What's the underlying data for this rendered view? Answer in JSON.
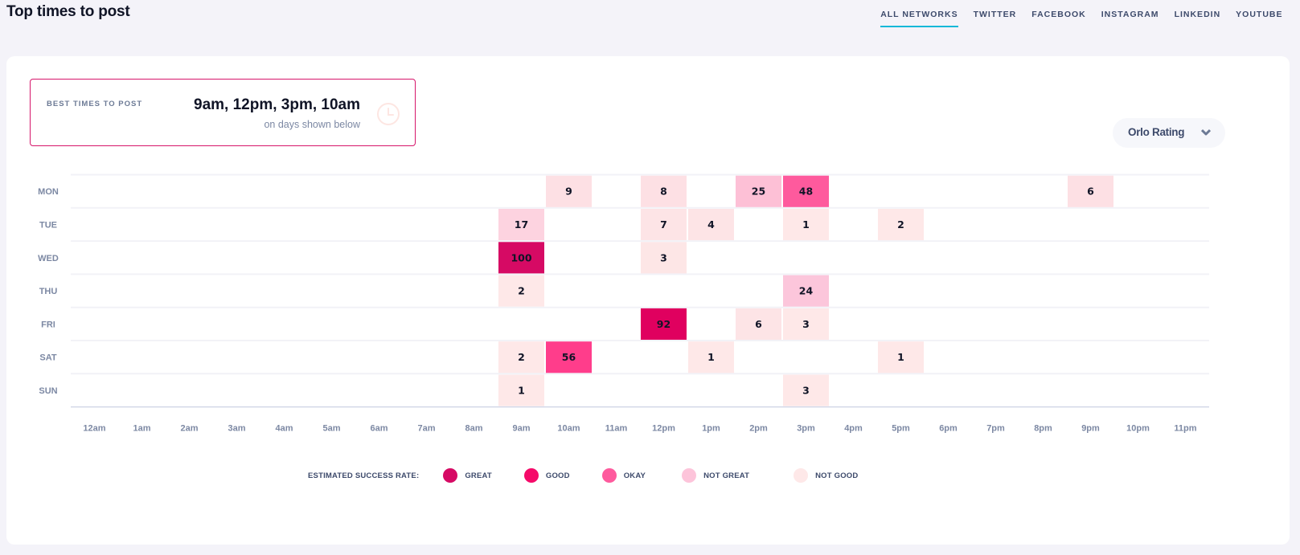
{
  "header": {
    "title": "Top times to post",
    "tabs": [
      {
        "label": "ALL NETWORKS",
        "active": true
      },
      {
        "label": "TWITTER",
        "active": false
      },
      {
        "label": "FACEBOOK",
        "active": false
      },
      {
        "label": "INSTAGRAM",
        "active": false
      },
      {
        "label": "LINKEDIN",
        "active": false
      },
      {
        "label": "YOUTUBE",
        "active": false
      }
    ]
  },
  "best_times": {
    "label": "BEST TIMES TO POST",
    "times": "9am, 12pm, 3pm, 10am",
    "subtitle": "on days shown below",
    "icon": "clock-icon"
  },
  "rating_dropdown": {
    "label": "Orlo Rating",
    "icon": "chevron-down-icon"
  },
  "legend": {
    "title": "ESTIMATED SUCCESS RATE:",
    "items": [
      {
        "label": "GREAT",
        "color": "#d60a64"
      },
      {
        "label": "GOOD",
        "color": "#f50a69"
      },
      {
        "label": "OKAY",
        "color": "#fe5a9d"
      },
      {
        "label": "NOT GREAT",
        "color": "#fdc4da"
      },
      {
        "label": "NOT GOOD",
        "color": "#fee8e8"
      }
    ]
  },
  "chart_data": {
    "type": "heatmap",
    "title": "Top times to post",
    "y_categories": [
      "MON",
      "TUE",
      "WED",
      "THU",
      "FRI",
      "SAT",
      "SUN"
    ],
    "x_categories": [
      "12am",
      "1am",
      "2am",
      "3am",
      "4am",
      "5am",
      "6am",
      "7am",
      "8am",
      "9am",
      "10am",
      "11am",
      "12pm",
      "1pm",
      "2pm",
      "3pm",
      "4pm",
      "5pm",
      "6pm",
      "7pm",
      "8pm",
      "9pm",
      "10pm",
      "11pm"
    ],
    "cells": [
      {
        "day": "MON",
        "hour": "10am",
        "value": 9,
        "rating": "NOT GOOD"
      },
      {
        "day": "MON",
        "hour": "12pm",
        "value": 8,
        "rating": "NOT GOOD"
      },
      {
        "day": "MON",
        "hour": "2pm",
        "value": 25,
        "rating": "NOT GREAT"
      },
      {
        "day": "MON",
        "hour": "3pm",
        "value": 48,
        "rating": "OKAY"
      },
      {
        "day": "MON",
        "hour": "9pm",
        "value": 6,
        "rating": "NOT GOOD"
      },
      {
        "day": "TUE",
        "hour": "9am",
        "value": 17,
        "rating": "NOT GREAT"
      },
      {
        "day": "TUE",
        "hour": "12pm",
        "value": 7,
        "rating": "NOT GOOD"
      },
      {
        "day": "TUE",
        "hour": "1pm",
        "value": 4,
        "rating": "NOT GOOD"
      },
      {
        "day": "TUE",
        "hour": "3pm",
        "value": 1,
        "rating": "NOT GOOD"
      },
      {
        "day": "TUE",
        "hour": "5pm",
        "value": 2,
        "rating": "NOT GOOD"
      },
      {
        "day": "WED",
        "hour": "9am",
        "value": 100,
        "rating": "GREAT"
      },
      {
        "day": "WED",
        "hour": "12pm",
        "value": 3,
        "rating": "NOT GOOD"
      },
      {
        "day": "THU",
        "hour": "9am",
        "value": 2,
        "rating": "NOT GOOD"
      },
      {
        "day": "THU",
        "hour": "3pm",
        "value": 24,
        "rating": "NOT GREAT"
      },
      {
        "day": "FRI",
        "hour": "12pm",
        "value": 92,
        "rating": "GREAT"
      },
      {
        "day": "FRI",
        "hour": "2pm",
        "value": 6,
        "rating": "NOT GOOD"
      },
      {
        "day": "FRI",
        "hour": "3pm",
        "value": 3,
        "rating": "NOT GOOD"
      },
      {
        "day": "SAT",
        "hour": "9am",
        "value": 2,
        "rating": "NOT GOOD"
      },
      {
        "day": "SAT",
        "hour": "10am",
        "value": 56,
        "rating": "GOOD"
      },
      {
        "day": "SAT",
        "hour": "1pm",
        "value": 1,
        "rating": "NOT GOOD"
      },
      {
        "day": "SAT",
        "hour": "5pm",
        "value": 1,
        "rating": "NOT GOOD"
      },
      {
        "day": "SUN",
        "hour": "9am",
        "value": 1,
        "rating": "NOT GOOD"
      },
      {
        "day": "SUN",
        "hour": "3pm",
        "value": 3,
        "rating": "NOT GOOD"
      }
    ],
    "rating_colors": {
      "GREAT": "#d60a64",
      "GOOD": "#ff3d8b",
      "OKAY": "#fe5a9d",
      "NOT GREAT": "#fdc4da",
      "NOT GOOD": "#fee8e8"
    },
    "cell_overrides": {
      "MON-10am": "#fde0e4",
      "MON-12pm": "#fde0e4",
      "MON-9pm": "#fde0e4",
      "TUE-9am": "#fdd3e0",
      "TUE-12pm": "#fde4e6",
      "TUE-1pm": "#fde4e6",
      "WED-12pm": "#fde6e6",
      "FRI-12pm": "#e0005f",
      "FRI-2pm": "#fde4e6",
      "THU-3pm": "#fcc6db",
      "MON-2pm": "#fdc0d6"
    },
    "legend_position": "bottom"
  }
}
